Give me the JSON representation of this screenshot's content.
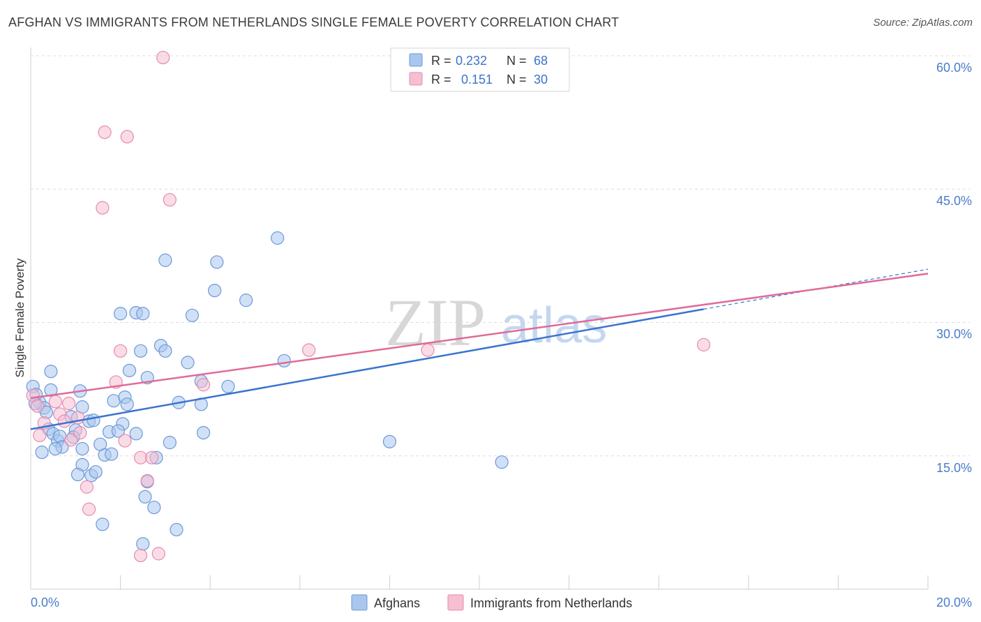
{
  "title": "AFGHAN VS IMMIGRANTS FROM NETHERLANDS SINGLE FEMALE POVERTY CORRELATION CHART",
  "source": "Source: ZipAtlas.com",
  "watermark": {
    "zip": "ZIP",
    "atlas": "atlas"
  },
  "colors": {
    "blue": "#3a74d0",
    "blue_fill": "#a9c6ee",
    "pink": "#e06a98",
    "pink_fill": "#f6bfd2",
    "tick": "#4a7cc8",
    "grid": "#dddddd"
  },
  "legend": {
    "rows": [
      {
        "r_label": "R =",
        "r_value": "0.232",
        "n_label": "N =",
        "n_value": "68"
      },
      {
        "r_label": "R =",
        "r_value": "0.151",
        "n_label": "N =",
        "n_value": "30"
      }
    ]
  },
  "chart_data": {
    "type": "scatter",
    "title": "AFGHAN VS IMMIGRANTS FROM NETHERLANDS SINGLE FEMALE POVERTY CORRELATION CHART",
    "xlabel": "",
    "ylabel": "Single Female Poverty",
    "xlim": [
      0,
      20
    ],
    "ylim": [
      0,
      60
    ],
    "x_tick_labels": [
      "0.0%",
      "20.0%"
    ],
    "y_ticks": [
      15,
      30,
      45,
      60
    ],
    "y_tick_labels": [
      "15.0%",
      "30.0%",
      "45.0%",
      "60.0%"
    ],
    "series": [
      {
        "name": "Afghans",
        "color": "blue",
        "r": 0.232,
        "n": 68,
        "trend": {
          "x0": 0.0,
          "y0": 18.0,
          "x1": 15.0,
          "y1": 31.5,
          "dash_to_x": 20.0,
          "dash_to_y": 36.0
        },
        "points": [
          [
            0.05,
            22.8
          ],
          [
            0.12,
            21.9
          ],
          [
            0.2,
            21.0
          ],
          [
            0.3,
            20.4
          ],
          [
            0.1,
            20.9
          ],
          [
            0.45,
            24.5
          ],
          [
            0.45,
            22.4
          ],
          [
            0.35,
            19.9
          ],
          [
            0.4,
            18.0
          ],
          [
            0.5,
            17.5
          ],
          [
            0.6,
            16.7
          ],
          [
            0.65,
            17.2
          ],
          [
            0.7,
            16.0
          ],
          [
            0.55,
            15.8
          ],
          [
            0.25,
            15.4
          ],
          [
            0.9,
            19.4
          ],
          [
            1.1,
            22.3
          ],
          [
            1.3,
            18.9
          ],
          [
            1.15,
            20.5
          ],
          [
            1.0,
            17.9
          ],
          [
            0.95,
            17.1
          ],
          [
            1.15,
            15.8
          ],
          [
            1.15,
            14.0
          ],
          [
            1.05,
            12.9
          ],
          [
            1.35,
            12.8
          ],
          [
            1.45,
            13.2
          ],
          [
            1.55,
            16.3
          ],
          [
            1.65,
            15.1
          ],
          [
            1.75,
            17.7
          ],
          [
            1.8,
            15.2
          ],
          [
            1.85,
            21.2
          ],
          [
            2.1,
            21.6
          ],
          [
            2.15,
            20.8
          ],
          [
            2.05,
            18.6
          ],
          [
            1.95,
            17.8
          ],
          [
            2.35,
            17.5
          ],
          [
            2.2,
            24.6
          ],
          [
            2.45,
            26.8
          ],
          [
            2.6,
            23.8
          ],
          [
            2.6,
            12.1
          ],
          [
            2.55,
            10.4
          ],
          [
            2.75,
            9.2
          ],
          [
            2.8,
            14.8
          ],
          [
            2.9,
            27.4
          ],
          [
            3.0,
            26.8
          ],
          [
            3.1,
            16.5
          ],
          [
            3.3,
            21.0
          ],
          [
            3.5,
            25.5
          ],
          [
            3.6,
            30.8
          ],
          [
            3.8,
            20.8
          ],
          [
            3.85,
            17.6
          ],
          [
            3.8,
            23.4
          ],
          [
            4.1,
            33.6
          ],
          [
            4.15,
            36.8
          ],
          [
            4.4,
            22.8
          ],
          [
            4.8,
            32.5
          ],
          [
            5.5,
            39.5
          ],
          [
            5.65,
            25.7
          ],
          [
            2.0,
            31.0
          ],
          [
            2.35,
            31.1
          ],
          [
            2.5,
            31.0
          ],
          [
            3.0,
            37.0
          ],
          [
            1.6,
            7.3
          ],
          [
            2.5,
            5.1
          ],
          [
            3.25,
            6.7
          ],
          [
            8.0,
            16.6
          ],
          [
            10.5,
            14.3
          ],
          [
            1.4,
            19.0
          ]
        ]
      },
      {
        "name": "Immigrants from Netherlands",
        "color": "pink",
        "r": 0.151,
        "n": 30,
        "trend": {
          "x0": 0.0,
          "y0": 21.5,
          "x1": 20.0,
          "y1": 35.5
        },
        "points": [
          [
            0.05,
            21.8
          ],
          [
            0.15,
            20.6
          ],
          [
            0.2,
            17.3
          ],
          [
            0.3,
            18.7
          ],
          [
            0.55,
            21.1
          ],
          [
            0.65,
            19.7
          ],
          [
            0.85,
            20.9
          ],
          [
            0.9,
            16.8
          ],
          [
            1.05,
            19.3
          ],
          [
            1.1,
            17.6
          ],
          [
            1.25,
            11.5
          ],
          [
            1.3,
            9.0
          ],
          [
            1.6,
            42.9
          ],
          [
            1.65,
            51.4
          ],
          [
            2.15,
            50.9
          ],
          [
            2.0,
            26.8
          ],
          [
            1.9,
            23.3
          ],
          [
            2.1,
            16.7
          ],
          [
            2.45,
            14.8
          ],
          [
            2.6,
            12.2
          ],
          [
            2.7,
            14.8
          ],
          [
            2.45,
            3.8
          ],
          [
            2.85,
            4.0
          ],
          [
            2.95,
            59.8
          ],
          [
            3.1,
            43.8
          ],
          [
            3.85,
            23.0
          ],
          [
            6.2,
            26.9
          ],
          [
            8.85,
            26.9
          ],
          [
            15.0,
            27.5
          ],
          [
            0.75,
            18.9
          ]
        ]
      }
    ]
  },
  "bottom_legend": {
    "items": [
      {
        "label": "Afghans"
      },
      {
        "label": "Immigrants from Netherlands"
      }
    ]
  }
}
